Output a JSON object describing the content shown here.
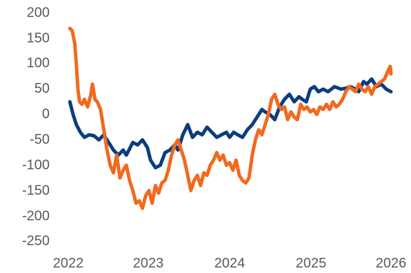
{
  "chart_data": {
    "type": "line",
    "title": "",
    "xlabel": "",
    "ylabel": "",
    "ylim": [
      -250,
      200
    ],
    "xlim": [
      2022,
      2026
    ],
    "y_ticks": [
      "200",
      "150",
      "100",
      "50",
      "0",
      "-50",
      "-100",
      "-150",
      "-200",
      "-250"
    ],
    "x_ticks": [
      "2022",
      "2023",
      "2024",
      "2025",
      "2026"
    ],
    "grid": false,
    "legend": "none",
    "series": [
      {
        "color": "#0B3C7F",
        "x": [
          2022.02,
          2022.06,
          2022.1,
          2022.15,
          2022.2,
          2022.26,
          2022.32,
          2022.38,
          2022.44,
          2022.5,
          2022.56,
          2022.62,
          2022.68,
          2022.72,
          2022.8,
          2022.86,
          2022.92,
          2022.98,
          2023.02,
          2023.08,
          2023.14,
          2023.2,
          2023.26,
          2023.32,
          2023.36,
          2023.42,
          2023.48,
          2023.54,
          2023.6,
          2023.66,
          2023.72,
          2023.78,
          2023.84,
          2023.9,
          2023.96,
          2024.0,
          2024.05,
          2024.1,
          2024.16,
          2024.22,
          2024.28,
          2024.34,
          2024.4,
          2024.44,
          2024.5,
          2024.56,
          2024.62,
          2024.68,
          2024.74,
          2024.8,
          2024.86,
          2024.9,
          2024.95,
          2025.0,
          2025.05,
          2025.1,
          2025.16,
          2025.22,
          2025.3,
          2025.38,
          2025.44,
          2025.5,
          2025.56,
          2025.6,
          2025.66,
          2025.7,
          2025.76,
          2025.82,
          2025.88,
          2025.94,
          2026.0
        ],
        "values": [
          25,
          0,
          -20,
          -35,
          -45,
          -40,
          -42,
          -50,
          -40,
          -55,
          -70,
          -80,
          -70,
          -80,
          -55,
          -60,
          -50,
          -65,
          -90,
          -105,
          -100,
          -75,
          -70,
          -60,
          -70,
          -40,
          -20,
          -45,
          -35,
          -40,
          -25,
          -35,
          -45,
          -40,
          -35,
          -45,
          -35,
          -40,
          -45,
          -30,
          -20,
          -5,
          10,
          5,
          0,
          -10,
          15,
          30,
          40,
          25,
          35,
          30,
          25,
          50,
          55,
          45,
          50,
          45,
          55,
          50,
          52,
          55,
          50,
          45,
          65,
          60,
          70,
          55,
          60,
          50,
          45
        ]
      },
      {
        "color": "#F2691E",
        "x": [
          2022.02,
          2022.05,
          2022.08,
          2022.1,
          2022.12,
          2022.14,
          2022.17,
          2022.2,
          2022.24,
          2022.28,
          2022.3,
          2022.33,
          2022.36,
          2022.4,
          2022.44,
          2022.48,
          2022.52,
          2022.56,
          2022.6,
          2022.64,
          2022.68,
          2022.72,
          2022.76,
          2022.8,
          2022.84,
          2022.88,
          2022.92,
          2022.96,
          2023.0,
          2023.04,
          2023.08,
          2023.12,
          2023.16,
          2023.2,
          2023.24,
          2023.28,
          2023.32,
          2023.36,
          2023.4,
          2023.44,
          2023.48,
          2023.52,
          2023.56,
          2023.6,
          2023.64,
          2023.68,
          2023.72,
          2023.76,
          2023.8,
          2023.84,
          2023.88,
          2023.92,
          2023.96,
          2024.0,
          2024.04,
          2024.08,
          2024.12,
          2024.16,
          2024.2,
          2024.24,
          2024.28,
          2024.32,
          2024.36,
          2024.4,
          2024.44,
          2024.48,
          2024.52,
          2024.56,
          2024.6,
          2024.64,
          2024.68,
          2024.72,
          2024.76,
          2024.8,
          2024.84,
          2024.88,
          2024.92,
          2024.96,
          2025.0,
          2025.04,
          2025.08,
          2025.12,
          2025.16,
          2025.2,
          2025.24,
          2025.28,
          2025.32,
          2025.36,
          2025.4,
          2025.44,
          2025.48,
          2025.52,
          2025.56,
          2025.6,
          2025.64,
          2025.68,
          2025.72,
          2025.76,
          2025.8,
          2025.84,
          2025.88,
          2025.92,
          2025.96,
          2025.99,
          2026.0
        ],
        "values": [
          170,
          165,
          140,
          100,
          50,
          25,
          20,
          30,
          15,
          40,
          60,
          30,
          25,
          10,
          -30,
          -70,
          -100,
          -115,
          -80,
          -125,
          -110,
          -100,
          -130,
          -150,
          -175,
          -170,
          -185,
          -160,
          -150,
          -175,
          -140,
          -155,
          -135,
          -130,
          -110,
          -80,
          -60,
          -50,
          -70,
          -90,
          -120,
          -150,
          -130,
          -120,
          -140,
          -115,
          -120,
          -100,
          -90,
          -75,
          -90,
          -80,
          -100,
          -95,
          -110,
          -90,
          -120,
          -130,
          -135,
          -125,
          -80,
          -50,
          -30,
          -40,
          -20,
          0,
          30,
          40,
          20,
          10,
          15,
          -10,
          5,
          -5,
          -10,
          20,
          10,
          15,
          5,
          10,
          0,
          15,
          10,
          20,
          10,
          25,
          15,
          20,
          30,
          45,
          55,
          50,
          45,
          60,
          50,
          45,
          55,
          40,
          55,
          60,
          65,
          70,
          85,
          95,
          80
        ]
      }
    ]
  }
}
